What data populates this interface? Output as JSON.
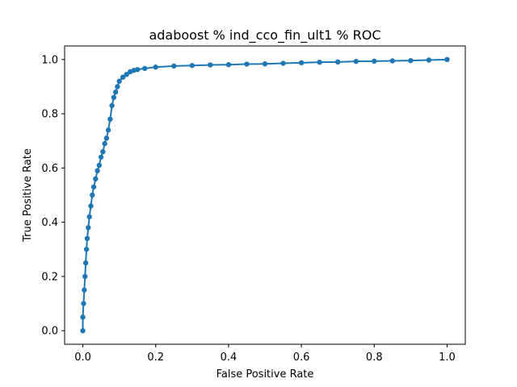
{
  "chart_data": {
    "type": "line",
    "title": "adaboost % ind_cco_fin_ult1 % ROC",
    "xlabel": "False Positive Rate",
    "ylabel": "True Positive Rate",
    "xlim": [
      -0.05,
      1.05
    ],
    "ylim": [
      -0.05,
      1.05
    ],
    "x_ticks": [
      "0.0",
      "0.2",
      "0.4",
      "0.6",
      "0.8",
      "1.0"
    ],
    "y_ticks": [
      "0.0",
      "0.2",
      "0.4",
      "0.6",
      "0.8",
      "1.0"
    ],
    "grid": false,
    "series": [
      {
        "color": "#1f77b4",
        "marker": "circle",
        "x": [
          0.0,
          0.0,
          0.002,
          0.004,
          0.006,
          0.008,
          0.01,
          0.012,
          0.015,
          0.018,
          0.022,
          0.026,
          0.03,
          0.035,
          0.04,
          0.045,
          0.05,
          0.055,
          0.06,
          0.065,
          0.07,
          0.075,
          0.08,
          0.085,
          0.09,
          0.095,
          0.1,
          0.11,
          0.12,
          0.13,
          0.14,
          0.15,
          0.17,
          0.2,
          0.25,
          0.3,
          0.35,
          0.4,
          0.45,
          0.5,
          0.55,
          0.6,
          0.65,
          0.7,
          0.75,
          0.8,
          0.85,
          0.9,
          0.95,
          1.0
        ],
        "y": [
          0.0,
          0.05,
          0.1,
          0.15,
          0.2,
          0.25,
          0.3,
          0.34,
          0.38,
          0.42,
          0.46,
          0.5,
          0.53,
          0.56,
          0.59,
          0.61,
          0.64,
          0.66,
          0.69,
          0.71,
          0.74,
          0.78,
          0.83,
          0.86,
          0.88,
          0.9,
          0.92,
          0.935,
          0.945,
          0.955,
          0.96,
          0.963,
          0.967,
          0.972,
          0.976,
          0.978,
          0.98,
          0.981,
          0.983,
          0.984,
          0.986,
          0.988,
          0.99,
          0.991,
          0.993,
          0.994,
          0.995,
          0.996,
          0.998,
          1.0
        ]
      }
    ]
  }
}
